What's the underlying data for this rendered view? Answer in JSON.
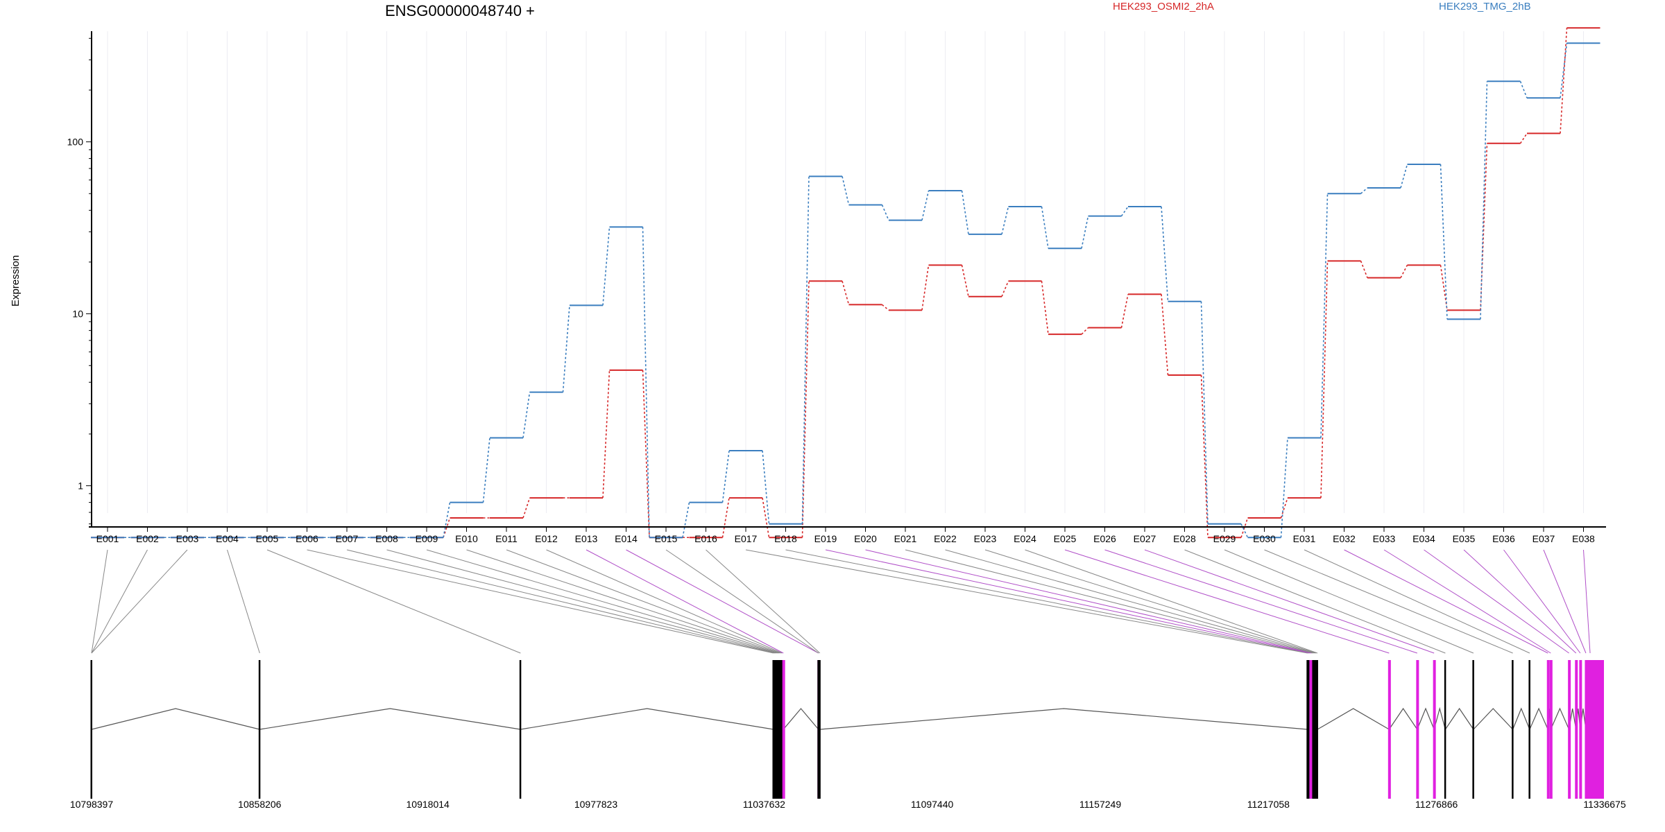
{
  "chart_data": {
    "type": "line",
    "title": "ENSG00000048740 +",
    "xlabel": "",
    "ylabel": "Expression",
    "y_scale": "log",
    "y_ticks": [
      1,
      10,
      100
    ],
    "y_tick_labels": [
      "1",
      "10",
      "100"
    ],
    "categories": [
      "E001",
      "E002",
      "E003",
      "E004",
      "E005",
      "E006",
      "E007",
      "E008",
      "E009",
      "E010",
      "E011",
      "E012",
      "E013",
      "E014",
      "E015",
      "E016",
      "E017",
      "E018",
      "E019",
      "E020",
      "E021",
      "E022",
      "E023",
      "E024",
      "E025",
      "E026",
      "E027",
      "E028",
      "E029",
      "E030",
      "E031",
      "E032",
      "E033",
      "E034",
      "E035",
      "E036",
      "E037",
      "E038"
    ],
    "series": [
      {
        "name": "HEK293_OSMI2_2hA",
        "color": "#d62728",
        "values": [
          0.5,
          0.5,
          0.5,
          0.5,
          0.5,
          0.5,
          0.5,
          0.5,
          0.5,
          0.65,
          0.65,
          0.85,
          0.85,
          4.7,
          0.5,
          0.5,
          0.85,
          0.5,
          15.5,
          11.3,
          10.5,
          19.2,
          12.6,
          15.5,
          7.6,
          8.3,
          13.0,
          4.4,
          0.5,
          0.65,
          0.85,
          20.3,
          16.2,
          19.2,
          10.5,
          98.0,
          112.0,
          460.0
        ]
      },
      {
        "name": "HEK293_TMG_2hB",
        "color": "#3a7ebf",
        "values": [
          0.5,
          0.5,
          0.5,
          0.5,
          0.5,
          0.5,
          0.5,
          0.5,
          0.5,
          0.8,
          1.9,
          3.5,
          11.2,
          32.0,
          0.5,
          0.8,
          1.6,
          0.6,
          63.0,
          43.0,
          35.0,
          52.0,
          29.0,
          42.0,
          24.0,
          37.0,
          42.0,
          11.8,
          0.6,
          0.5,
          1.9,
          50.0,
          54.0,
          74.0,
          9.3,
          225.0,
          180.0,
          375.0
        ]
      }
    ],
    "legend_position": "top",
    "grid": "vertical",
    "gene_model": {
      "coord_ticks": [
        "10798397",
        "10858206",
        "10918014",
        "10977823",
        "11037632",
        "11097440",
        "11157249",
        "11217058",
        "11276866",
        "11336675"
      ],
      "coord_range": [
        10798397,
        11336675
      ],
      "intron_path_color": "#555555",
      "highlight_color": "#e020e0",
      "exon_positions": [
        10798397,
        10798397,
        10798397,
        10858206,
        10951000,
        11041000,
        11041500,
        11042000,
        11042500,
        11043000,
        11043500,
        11044000,
        11044500,
        11057000,
        11057000,
        11057500,
        11231000,
        11231500,
        11232000,
        11232500,
        11233000,
        11233500,
        11234000,
        11234500,
        11260000,
        11270000,
        11276000,
        11280000,
        11290000,
        11304000,
        11310000,
        11316500,
        11317500,
        11324000,
        11326500,
        11328000,
        11330000,
        11331500
      ],
      "exon_highlight": [
        false,
        false,
        false,
        false,
        false,
        false,
        false,
        false,
        false,
        false,
        false,
        false,
        true,
        true,
        false,
        false,
        false,
        false,
        true,
        true,
        false,
        false,
        false,
        false,
        true,
        true,
        true,
        false,
        false,
        false,
        false,
        true,
        true,
        true,
        true,
        true,
        true,
        true
      ]
    }
  }
}
